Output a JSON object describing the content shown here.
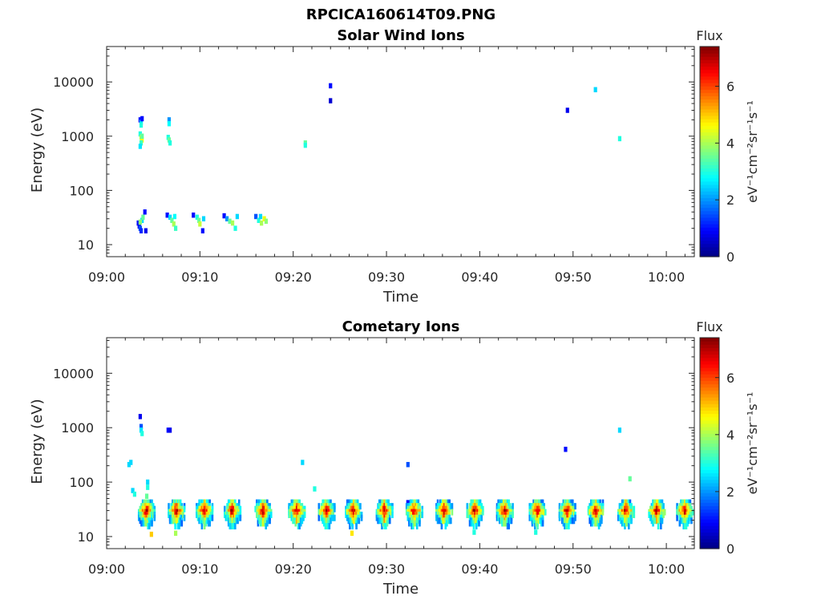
{
  "figure_title": "RPCICA160614T09.PNG",
  "chart_data": [
    {
      "type": "heatmap",
      "title": "Solar Wind Ions",
      "xlabel": "Time",
      "ylabel": "Energy (eV)",
      "x_range": [
        "09:00",
        "10:03"
      ],
      "y_scale": "log",
      "y_range": [
        6,
        45000
      ],
      "x_ticks": [
        "09:00",
        "09:10",
        "09:20",
        "09:30",
        "09:40",
        "09:50",
        "10:00"
      ],
      "y_ticks": [
        "10",
        "100",
        "1000",
        "10000"
      ],
      "colorbar": {
        "label": "Flux",
        "unit": "eV⁻¹cm⁻²sr⁻¹s⁻¹",
        "range": [
          0,
          7.4
        ],
        "ticks": [
          "0",
          "2",
          "4",
          "6"
        ],
        "colormap": "jet"
      },
      "cells": [
        [
          3.6,
          2000,
          1.0
        ],
        [
          3.7,
          1800,
          2.5
        ],
        [
          3.7,
          1600,
          3.0
        ],
        [
          3.8,
          2100,
          1.0
        ],
        [
          3.6,
          1100,
          3.0
        ],
        [
          3.7,
          950,
          4.0
        ],
        [
          3.8,
          850,
          4.5
        ],
        [
          3.7,
          750,
          3.2
        ],
        [
          3.6,
          650,
          2.6
        ],
        [
          3.8,
          1000,
          3.5
        ],
        [
          6.7,
          2000,
          2.0
        ],
        [
          6.7,
          1700,
          2.8
        ],
        [
          6.6,
          950,
          3.0
        ],
        [
          6.7,
          850,
          3.5
        ],
        [
          6.8,
          750,
          3.0
        ],
        [
          3.4,
          25,
          1.0
        ],
        [
          3.5,
          22,
          0.8
        ],
        [
          3.6,
          20,
          1.5
        ],
        [
          3.7,
          18,
          1.2
        ],
        [
          3.8,
          28,
          2.5
        ],
        [
          3.9,
          32,
          3.5
        ],
        [
          4.1,
          40,
          1.0
        ],
        [
          4.2,
          18,
          0.8
        ],
        [
          3.6,
          26,
          3.8
        ],
        [
          6.5,
          35,
          1.0
        ],
        [
          6.8,
          32,
          2.5
        ],
        [
          7.0,
          28,
          3.5
        ],
        [
          7.2,
          24,
          4.0
        ],
        [
          7.4,
          20,
          3.2
        ],
        [
          7.3,
          33,
          2.8
        ],
        [
          9.3,
          35,
          1.0
        ],
        [
          9.7,
          32,
          3.0
        ],
        [
          9.9,
          28,
          3.5
        ],
        [
          10.0,
          24,
          4.2
        ],
        [
          10.3,
          18,
          1.0
        ],
        [
          10.4,
          30,
          2.5
        ],
        [
          12.6,
          34,
          1.0
        ],
        [
          12.9,
          30,
          2.0
        ],
        [
          13.2,
          27,
          3.5
        ],
        [
          13.5,
          25,
          4.0
        ],
        [
          13.8,
          20,
          3.0
        ],
        [
          14.0,
          33,
          2.5
        ],
        [
          16.0,
          33,
          1.5
        ],
        [
          16.3,
          28,
          3.0
        ],
        [
          16.6,
          25,
          4.0
        ],
        [
          16.9,
          30,
          4.5
        ],
        [
          17.1,
          27,
          3.8
        ],
        [
          16.5,
          33,
          2.5
        ],
        [
          21.3,
          750,
          3.5
        ],
        [
          21.3,
          680,
          3.0
        ],
        [
          24.0,
          8500,
          1.0
        ],
        [
          24.0,
          4500,
          0.6
        ],
        [
          49.4,
          3000,
          0.8
        ],
        [
          52.4,
          7200,
          2.5
        ],
        [
          55.0,
          900,
          3.0
        ]
      ]
    },
    {
      "type": "heatmap",
      "title": "Cometary Ions",
      "xlabel": "Time",
      "ylabel": "Energy (eV)",
      "x_range": [
        "09:00",
        "10:03"
      ],
      "y_scale": "log",
      "y_range": [
        6,
        45000
      ],
      "x_ticks": [
        "09:00",
        "09:10",
        "09:20",
        "09:30",
        "09:40",
        "09:50",
        "10:00"
      ],
      "y_ticks": [
        "10",
        "100",
        "1000",
        "10000"
      ],
      "colorbar": {
        "label": "Flux",
        "unit": "eV⁻¹cm⁻²sr⁻¹s⁻¹",
        "range": [
          0,
          7.4
        ],
        "ticks": [
          "0",
          "2",
          "4",
          "6"
        ],
        "colormap": "jet"
      },
      "cells": [
        [
          3.6,
          1600,
          0.8
        ],
        [
          3.7,
          1050,
          1.5
        ],
        [
          3.7,
          900,
          2.6
        ],
        [
          3.8,
          780,
          3.0
        ],
        [
          6.6,
          900,
          1.0
        ],
        [
          6.8,
          900,
          0.8
        ],
        [
          2.4,
          210,
          2.5
        ],
        [
          2.6,
          230,
          2.5
        ],
        [
          2.8,
          70,
          2.5
        ],
        [
          3.0,
          60,
          3.0
        ],
        [
          4.4,
          100,
          2.5
        ],
        [
          4.4,
          80,
          3.0
        ],
        [
          4.3,
          55,
          3.5
        ],
        [
          21.0,
          230,
          2.5
        ],
        [
          22.3,
          75,
          3.0
        ],
        [
          32.3,
          210,
          1.5
        ],
        [
          49.2,
          400,
          1.0
        ],
        [
          55.0,
          900,
          2.5
        ],
        [
          56.1,
          115,
          3.5
        ],
        [
          4.8,
          11,
          5.0
        ],
        [
          7.4,
          11.5,
          4.0
        ],
        [
          26.3,
          11.5,
          4.8
        ],
        [
          39.4,
          12,
          3.0
        ],
        [
          46.0,
          12,
          3.0
        ],
        [
          20.6,
          42,
          1.0
        ],
        [
          32.3,
          42,
          1.0
        ],
        [
          49.4,
          42,
          1.0
        ],
        [
          52.6,
          42,
          1.5
        ]
      ],
      "clusters": [
        4.3,
        7.5,
        10.5,
        13.5,
        16.8,
        20.4,
        23.6,
        26.5,
        29.8,
        33.0,
        36.2,
        39.5,
        42.7,
        46.2,
        49.4,
        52.5,
        55.7,
        59.0,
        62.0
      ]
    }
  ]
}
